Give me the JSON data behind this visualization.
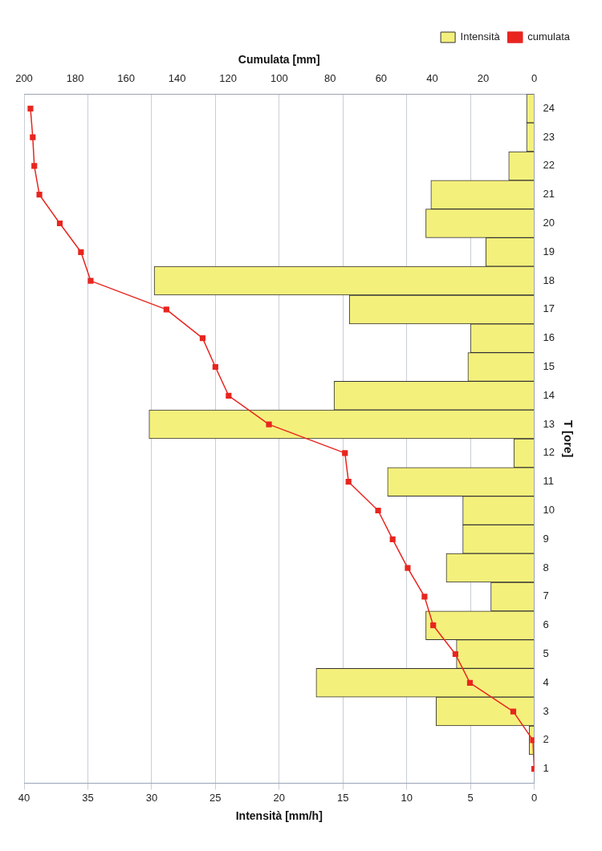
{
  "chart_data": {
    "type": "bar",
    "orientation": "horizontal",
    "xlabel": "Intensità [mm/h]",
    "x2label": "Cumulata [mm]",
    "ylabel": "T [ore]",
    "categories": [
      "24",
      "23",
      "22",
      "21",
      "20",
      "19",
      "18",
      "17",
      "16",
      "15",
      "14",
      "13",
      "12",
      "11",
      "10",
      "9",
      "8",
      "7",
      "6",
      "5",
      "4",
      "3",
      "2",
      "1"
    ],
    "series": [
      {
        "name": "Intensità",
        "color": "#f4f07c",
        "values": [
          0.6,
          0.6,
          2.0,
          8.1,
          8.5,
          3.8,
          29.8,
          14.5,
          5.0,
          5.2,
          15.7,
          30.2,
          1.6,
          11.5,
          5.6,
          5.6,
          6.9,
          3.4,
          8.5,
          6.1,
          17.1,
          7.7,
          0.4,
          0
        ]
      },
      {
        "name": "cumulata",
        "type": "line",
        "axis": "x2",
        "color": "#e8251f",
        "marker": "square",
        "line_style": "solid",
        "values": [
          197.5,
          196.6,
          196,
          194,
          186,
          177.7,
          173.9,
          144.2,
          130,
          125,
          119.8,
          104,
          74.2,
          72.8,
          61.2,
          55.5,
          49.6,
          43,
          39.6,
          30.9,
          25.2,
          8.2,
          0.5,
          0
        ]
      }
    ],
    "xlim": [
      40,
      0
    ],
    "xticks": [
      0,
      5,
      10,
      15,
      20,
      25,
      30,
      35,
      40
    ],
    "x2lim": [
      200,
      0
    ],
    "x2ticks": [
      0,
      20,
      40,
      60,
      80,
      100,
      120,
      140,
      160,
      180,
      200
    ],
    "grid": "x",
    "legend": "top right"
  }
}
